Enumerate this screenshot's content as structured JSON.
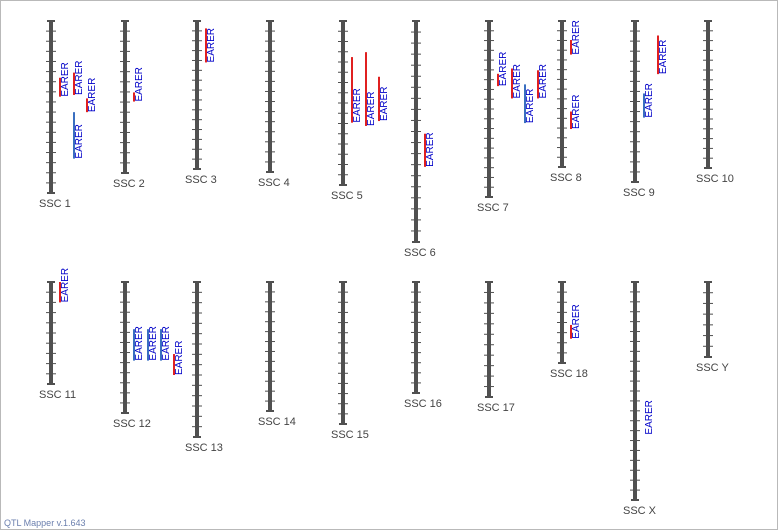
{
  "footer": "QTL Mapper v.1.643",
  "colors": {
    "chromosome": "#505050",
    "tick": "#505050",
    "label": "#444444",
    "qtl_text": "#0000c8",
    "qtl_red": "#e02020",
    "qtl_blue": "#3a6fc0"
  },
  "chromosomes": [
    {
      "name": "SSC 1",
      "ticks": 17,
      "qtls": [
        {
          "label": "EARER",
          "bar": "red",
          "start": 0.33,
          "end": 0.44,
          "col": 1
        },
        {
          "label": "EARER",
          "bar": "red",
          "start": 0.3,
          "end": 0.43,
          "col": 2
        },
        {
          "label": "EARER",
          "bar": "red",
          "start": 0.45,
          "end": 0.53,
          "col": 3
        },
        {
          "label": "EARER",
          "bar": "blue",
          "start": 0.53,
          "end": 0.8,
          "col": 2
        }
      ]
    },
    {
      "name": "SSC 2",
      "ticks": 15,
      "qtls": [
        {
          "label": "EARER",
          "bar": "red",
          "start": 0.47,
          "end": 0.53,
          "col": 1
        }
      ]
    },
    {
      "name": "SSC 3",
      "ticks": 15,
      "qtls": [
        {
          "label": "EARER",
          "bar": "red",
          "start": 0.05,
          "end": 0.28,
          "col": 1
        }
      ]
    },
    {
      "name": "SSC 4",
      "ticks": 15,
      "qtls": []
    },
    {
      "name": "SSC 5",
      "ticks": 16,
      "qtls": [
        {
          "label": "EARER",
          "bar": "red",
          "start": 0.22,
          "end": 0.62,
          "col": 1
        },
        {
          "label": "EARER",
          "bar": "red",
          "start": 0.19,
          "end": 0.64,
          "col": 2
        },
        {
          "label": "EARER",
          "bar": "red",
          "start": 0.34,
          "end": 0.61,
          "col": 3
        }
      ]
    },
    {
      "name": "SSC 6",
      "ticks": 20,
      "qtls": [
        {
          "label": "EARER",
          "bar": "red",
          "start": 0.51,
          "end": 0.66,
          "col": 1
        }
      ]
    },
    {
      "name": "SSC 7",
      "ticks": 18,
      "qtls": [
        {
          "label": "EARER",
          "bar": "red",
          "start": 0.3,
          "end": 0.37,
          "col": 1
        },
        {
          "label": "EARER",
          "bar": "red",
          "start": 0.27,
          "end": 0.44,
          "col": 2
        },
        {
          "label": "EARER",
          "bar": "blue",
          "start": 0.36,
          "end": 0.58,
          "col": 3
        },
        {
          "label": "EARER",
          "bar": "red",
          "start": 0.28,
          "end": 0.44,
          "col": 4
        }
      ]
    },
    {
      "name": "SSC 8",
      "ticks": 15,
      "qtls": [
        {
          "label": "EARER",
          "bar": "red",
          "start": 0.13,
          "end": 0.23,
          "col": 1
        },
        {
          "label": "EARER",
          "bar": "red",
          "start": 0.62,
          "end": 0.74,
          "col": 1
        }
      ]
    },
    {
      "name": "SSC 9",
      "ticks": 16,
      "qtls": [
        {
          "label": "EARER",
          "bar": "red",
          "start": 0.09,
          "end": 0.33,
          "col": 2
        },
        {
          "label": "EARER",
          "bar": "blue",
          "start": 0.45,
          "end": 0.6,
          "col": 1
        }
      ]
    },
    {
      "name": "SSC 10",
      "ticks": 15,
      "qtls": []
    },
    {
      "name": "SSC 11",
      "ticks": 10,
      "qtls": [
        {
          "label": "EARER",
          "bar": "red",
          "start": 0.0,
          "end": 0.2,
          "col": 1
        }
      ]
    },
    {
      "name": "SSC 12",
      "ticks": 13,
      "qtls": [
        {
          "label": "EARER",
          "bar": "blue",
          "start": 0.36,
          "end": 0.6,
          "col": 1
        },
        {
          "label": "EARER",
          "bar": "blue",
          "start": 0.36,
          "end": 0.6,
          "col": 2
        },
        {
          "label": "EARER",
          "bar": "blue",
          "start": 0.36,
          "end": 0.6,
          "col": 3
        },
        {
          "label": "EARER",
          "bar": "red",
          "start": 0.55,
          "end": 0.71,
          "col": 4
        }
      ]
    },
    {
      "name": "SSC 13",
      "ticks": 15,
      "qtls": []
    },
    {
      "name": "SSC 14",
      "ticks": 13,
      "qtls": []
    },
    {
      "name": "SSC 15",
      "ticks": 14,
      "qtls": []
    },
    {
      "name": "SSC 16",
      "ticks": 11,
      "qtls": []
    },
    {
      "name": "SSC 17",
      "ticks": 11,
      "qtls": []
    },
    {
      "name": "SSC 18",
      "ticks": 8,
      "qtls": [
        {
          "label": "EARER",
          "bar": "red",
          "start": 0.53,
          "end": 0.7,
          "col": 1
        }
      ]
    },
    {
      "name": "SSC X",
      "ticks": 22,
      "qtls": [
        {
          "label": "EARER",
          "bar": null,
          "start": 0.52,
          "end": 0.7,
          "col": 1
        }
      ]
    },
    {
      "name": "SSC Y",
      "ticks": 7,
      "qtls": []
    }
  ]
}
